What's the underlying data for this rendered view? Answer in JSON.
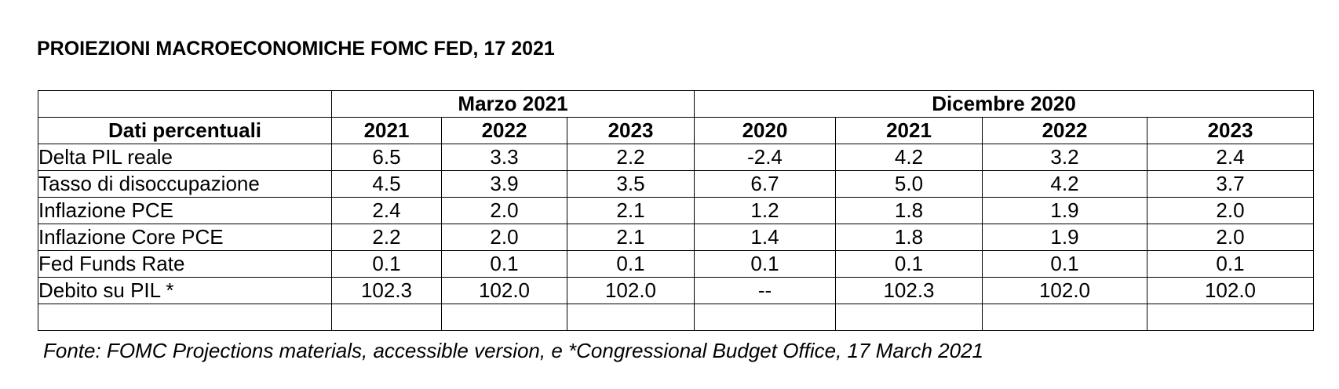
{
  "title": "PROIEZIONI MACROECONOMICHE FOMC FED, 17 2021",
  "table": {
    "groups": {
      "march": "Marzo 2021",
      "december": "Dicembre 2020"
    },
    "header_label": "Dati percentuali",
    "years": [
      "2021",
      "2022",
      "2023",
      "2020",
      "2021",
      "2022",
      "2023"
    ],
    "rows": [
      {
        "label": "Delta PIL reale",
        "values": [
          "6.5",
          "3.3",
          "2.2",
          "-2.4",
          "4.2",
          "3.2",
          "2.4"
        ]
      },
      {
        "label": "Tasso di disoccupazione",
        "values": [
          "4.5",
          "3.9",
          "3.5",
          "6.7",
          "5.0",
          "4.2",
          "3.7"
        ]
      },
      {
        "label": "Inflazione PCE",
        "values": [
          "2.4",
          "2.0",
          "2.1",
          "1.2",
          "1.8",
          "1.9",
          "2.0"
        ]
      },
      {
        "label": "Inflazione Core PCE",
        "values": [
          "2.2",
          "2.0",
          "2.1",
          "1.4",
          "1.8",
          "1.9",
          "2.0"
        ]
      },
      {
        "label": "Fed Funds Rate",
        "values": [
          "0.1",
          "0.1",
          "0.1",
          "0.1",
          "0.1",
          "0.1",
          "0.1"
        ]
      },
      {
        "label": "Debito su PIL *",
        "values": [
          "102.3",
          "102.0",
          "102.0",
          "--",
          "102.3",
          "102.0",
          "102.0"
        ]
      }
    ]
  },
  "source": "Fonte: FOMC Projections materials, accessible version, e *Congressional Budget Office, 17 March 2021"
}
